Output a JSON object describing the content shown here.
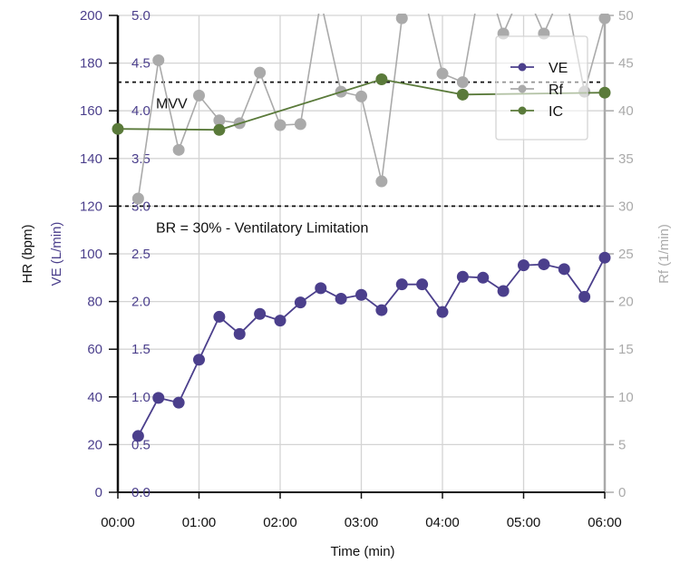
{
  "chart_data": {
    "type": "line",
    "xlabel": "Time (min)",
    "x_ticks": [
      "00:00",
      "01:00",
      "02:00",
      "03:00",
      "04:00",
      "05:00",
      "06:00"
    ],
    "xlim": [
      0,
      6
    ],
    "grid": true,
    "axes": {
      "hr": {
        "label": "HR (bpm)",
        "range": [
          0,
          200
        ],
        "ticks": [
          "0",
          "20",
          "40",
          "60",
          "80",
          "100",
          "120",
          "140",
          "160",
          "180",
          "200"
        ]
      },
      "ve": {
        "label": "VE (L/min)",
        "range": [
          0,
          5
        ],
        "ticks": [
          "0.0",
          "0.5",
          "1.0",
          "1.5",
          "2.0",
          "2.5",
          "3.0",
          "3.5",
          "4.0",
          "4.5",
          "5.0"
        ],
        "color": "#4b3f8c"
      },
      "rf": {
        "label": "Rf (1/min)",
        "range": [
          0,
          50
        ],
        "ticks": [
          "0",
          "5",
          "10",
          "15",
          "20",
          "25",
          "30",
          "35",
          "40",
          "45",
          "50"
        ],
        "color": "#aaaaaa"
      }
    },
    "reference_lines": [
      {
        "label": "MVV",
        "ve": 4.3
      },
      {
        "label": "BR = 30% - Ventilatory Limitation",
        "ve": 3.0
      }
    ],
    "legend_position": "top-right",
    "series": [
      {
        "name": "VE",
        "axis": "ve",
        "color": "#4b3f8c",
        "x": [
          0.25,
          0.5,
          0.75,
          1.0,
          1.25,
          1.5,
          1.75,
          2.0,
          2.25,
          2.5,
          2.75,
          3.0,
          3.25,
          3.5,
          3.75,
          4.0,
          4.25,
          4.5,
          4.75,
          5.0,
          5.25,
          5.5,
          5.75,
          6.0
        ],
        "y": [
          0.59,
          0.99,
          0.94,
          1.39,
          1.84,
          1.66,
          1.87,
          1.8,
          1.99,
          2.14,
          2.03,
          2.07,
          1.91,
          2.18,
          2.18,
          1.89,
          2.26,
          2.25,
          2.11,
          2.38,
          2.39,
          2.34,
          2.05,
          2.46
        ]
      },
      {
        "name": "Rf",
        "axis": "rf",
        "color": "#aaaaaa",
        "x": [
          0.25,
          0.5,
          0.75,
          1.0,
          1.25,
          1.5,
          1.75,
          2.0,
          2.25,
          2.5,
          2.75,
          3.0,
          3.25,
          3.5,
          3.75,
          4.0,
          4.25,
          4.5,
          4.75,
          5.0,
          5.25,
          5.5,
          5.75,
          6.0
        ],
        "y": [
          30.8,
          45.3,
          35.9,
          41.6,
          39.0,
          38.7,
          44.0,
          38.5,
          38.6,
          51.5,
          42.0,
          41.5,
          32.6,
          49.7,
          53.0,
          43.9,
          43.0,
          55.0,
          48.1,
          53.0,
          48.1,
          53.0,
          42.0,
          49.7
        ]
      },
      {
        "name": "IC",
        "axis": "ve",
        "color": "#5a7a3a",
        "x": [
          0.0,
          1.25,
          3.25,
          4.25,
          6.0
        ],
        "y": [
          3.81,
          3.8,
          4.33,
          4.17,
          4.19
        ]
      }
    ]
  }
}
